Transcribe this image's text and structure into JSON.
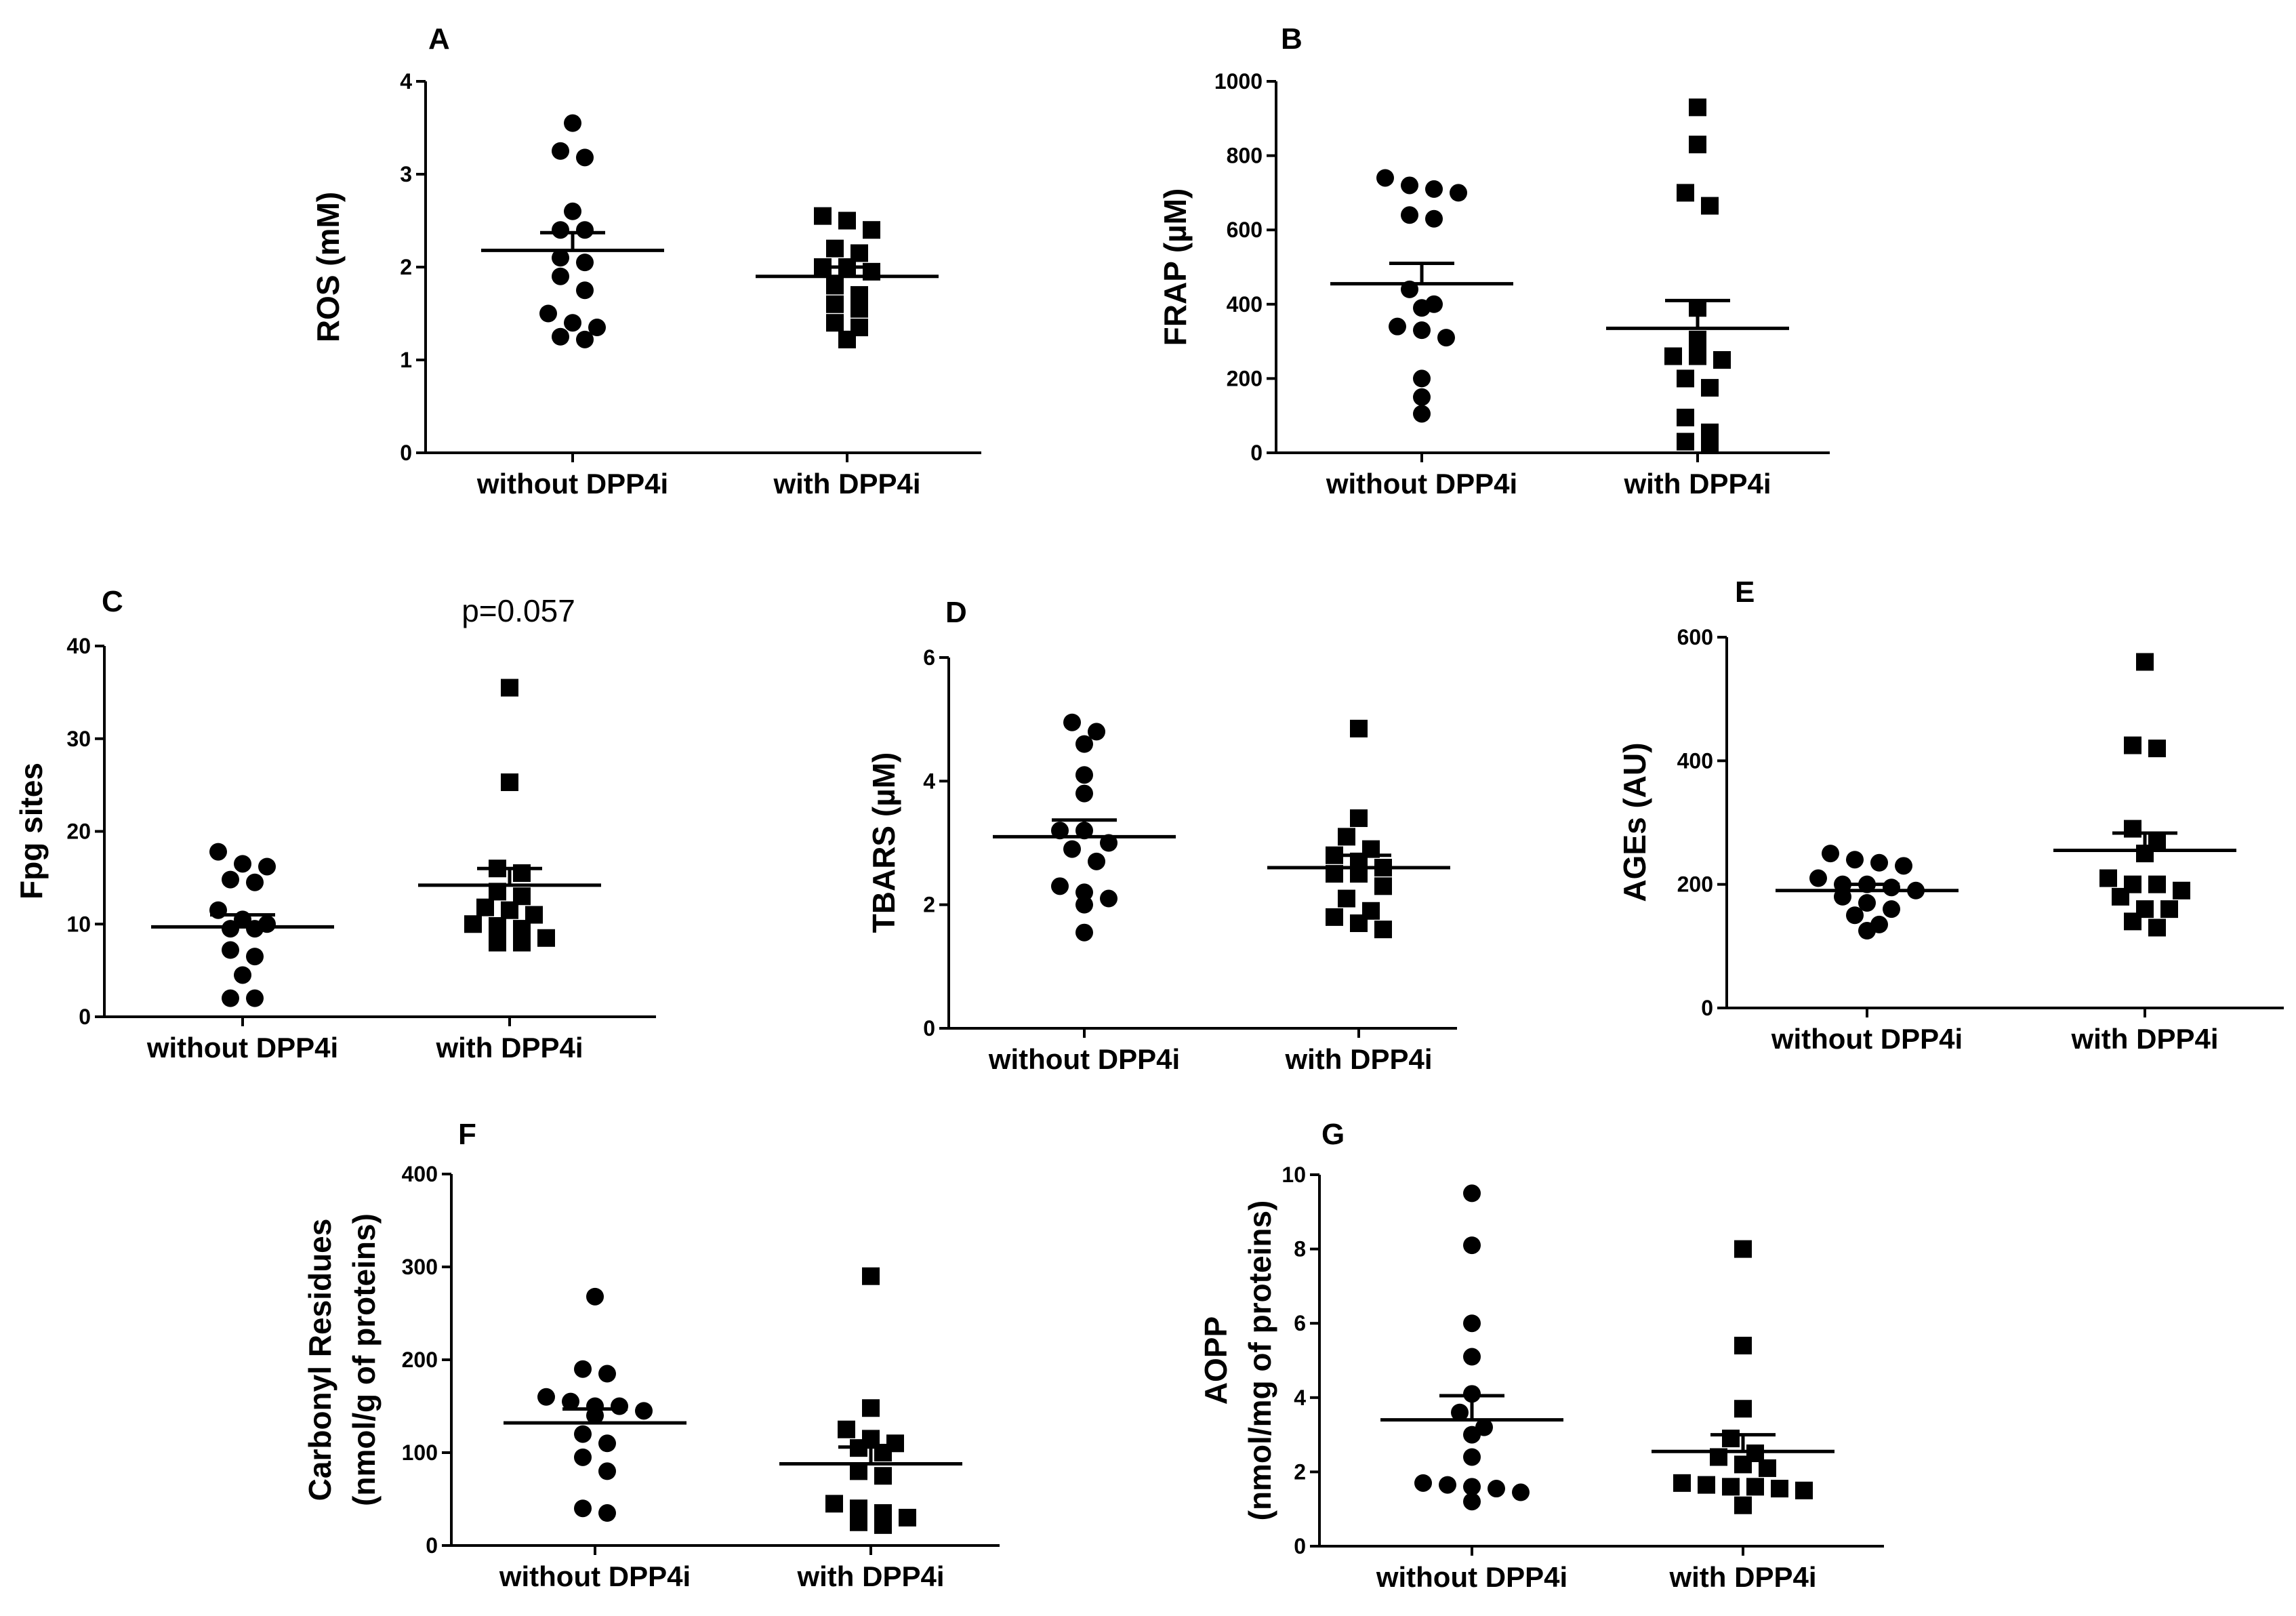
{
  "chart_data": [
    {
      "type": "scatter",
      "panel": "A",
      "ylabel": "ROS (mM)",
      "ylim": [
        0,
        4
      ],
      "yticks": [
        0,
        1,
        2,
        3,
        4
      ],
      "categories": [
        "without DPP4i",
        "with DPP4i"
      ],
      "series": [
        {
          "name": "without DPP4i",
          "marker": "circle",
          "mean": 2.18,
          "sem": 0.19,
          "values": [
            3.55,
            3.25,
            3.18,
            2.6,
            2.4,
            2.4,
            2.1,
            2.05,
            1.9,
            1.75,
            1.5,
            1.4,
            1.35,
            1.25,
            1.22
          ]
        },
        {
          "name": "with DPP4i",
          "marker": "square",
          "mean": 1.9,
          "sem": 0.1,
          "values": [
            2.55,
            2.5,
            2.4,
            2.2,
            2.15,
            2.0,
            2.0,
            1.95,
            1.8,
            1.7,
            1.6,
            1.55,
            1.4,
            1.35,
            1.22
          ]
        }
      ]
    },
    {
      "type": "scatter",
      "panel": "B",
      "ylabel": "FRAP (µM)",
      "ylim": [
        0,
        1000
      ],
      "yticks": [
        0,
        200,
        400,
        600,
        800,
        1000
      ],
      "categories": [
        "without DPP4i",
        "with DPP4i"
      ],
      "series": [
        {
          "name": "without DPP4i",
          "marker": "circle",
          "mean": 455,
          "sem": 55,
          "values": [
            740,
            720,
            710,
            700,
            640,
            630,
            440,
            400,
            390,
            340,
            330,
            310,
            200,
            150,
            105
          ]
        },
        {
          "name": "with DPP4i",
          "marker": "square",
          "mean": 335,
          "sem": 75,
          "values": [
            930,
            830,
            700,
            665,
            390,
            305,
            260,
            260,
            250,
            200,
            175,
            95,
            55,
            30,
            20
          ]
        }
      ]
    },
    {
      "type": "scatter",
      "panel": "C",
      "ylabel": "Fpg sites",
      "ylim": [
        0,
        40
      ],
      "yticks": [
        0,
        10,
        20,
        30,
        40
      ],
      "annotation": "p=0.057",
      "categories": [
        "without DPP4i",
        "with DPP4i"
      ],
      "series": [
        {
          "name": "without DPP4i",
          "marker": "circle",
          "mean": 9.7,
          "sem": 1.3,
          "values": [
            17.8,
            16.5,
            16.2,
            14.8,
            14.5,
            11.5,
            10.5,
            10.0,
            9.5,
            9.5,
            7.2,
            6.5,
            4.5,
            2.0,
            2.0
          ]
        },
        {
          "name": "with DPP4i",
          "marker": "square",
          "mean": 14.2,
          "sem": 1.8,
          "values": [
            35.5,
            25.3,
            16.0,
            15.5,
            13.5,
            13.0,
            11.8,
            11.5,
            11.0,
            10.0,
            9.8,
            9.5,
            8.5,
            8.0,
            8.0
          ]
        }
      ]
    },
    {
      "type": "scatter",
      "panel": "D",
      "ylabel": "TBARS (µM)",
      "ylim": [
        0,
        6
      ],
      "yticks": [
        0,
        2,
        4,
        6
      ],
      "categories": [
        "without DPP4i",
        "with DPP4i"
      ],
      "series": [
        {
          "name": "without DPP4i",
          "marker": "circle",
          "mean": 3.1,
          "sem": 0.27,
          "values": [
            4.95,
            4.8,
            4.6,
            4.1,
            3.8,
            3.2,
            3.2,
            3.0,
            2.9,
            2.7,
            2.3,
            2.2,
            2.1,
            2.0,
            1.55
          ]
        },
        {
          "name": "with DPP4i",
          "marker": "square",
          "mean": 2.6,
          "sem": 0.2,
          "values": [
            4.85,
            3.4,
            3.1,
            2.9,
            2.8,
            2.7,
            2.6,
            2.5,
            2.5,
            2.3,
            2.1,
            1.9,
            1.8,
            1.7,
            1.6
          ]
        }
      ]
    },
    {
      "type": "scatter",
      "panel": "E",
      "ylabel": "AGEs (AU)",
      "ylim": [
        0,
        600
      ],
      "yticks": [
        0,
        200,
        400,
        600
      ],
      "categories": [
        "without DPP4i",
        "with DPP4i"
      ],
      "series": [
        {
          "name": "without DPP4i",
          "marker": "circle",
          "mean": 190,
          "sem": 10,
          "values": [
            250,
            240,
            235,
            230,
            210,
            200,
            200,
            195,
            190,
            180,
            170,
            160,
            150,
            135,
            125
          ]
        },
        {
          "name": "with DPP4i",
          "marker": "square",
          "mean": 255,
          "sem": 28,
          "values": [
            560,
            425,
            420,
            290,
            270,
            250,
            210,
            200,
            200,
            190,
            180,
            160,
            160,
            140,
            130
          ]
        }
      ]
    },
    {
      "type": "scatter",
      "panel": "F",
      "ylabel": "Carbonyl Residues",
      "ylabel2": "(nmol/g of proteins)",
      "ylim": [
        0,
        400
      ],
      "yticks": [
        0,
        100,
        200,
        300,
        400
      ],
      "categories": [
        "without DPP4i",
        "with DPP4i"
      ],
      "series": [
        {
          "name": "without DPP4i",
          "marker": "circle",
          "mean": 132,
          "sem": 15,
          "values": [
            268,
            190,
            185,
            160,
            155,
            150,
            150,
            145,
            140,
            120,
            110,
            95,
            80,
            40,
            35
          ]
        },
        {
          "name": "with DPP4i",
          "marker": "square",
          "mean": 88,
          "sem": 18,
          "values": [
            290,
            148,
            125,
            115,
            110,
            105,
            100,
            80,
            75,
            45,
            40,
            35,
            30,
            25,
            22
          ]
        }
      ]
    },
    {
      "type": "scatter",
      "panel": "G",
      "ylabel": "AOPP",
      "ylabel2": "(nmol/mg of proteins)",
      "ylim": [
        0,
        10
      ],
      "yticks": [
        0,
        2,
        4,
        6,
        8,
        10
      ],
      "categories": [
        "without DPP4i",
        "with DPP4i"
      ],
      "series": [
        {
          "name": "without DPP4i",
          "marker": "circle",
          "mean": 3.4,
          "sem": 0.65,
          "values": [
            9.5,
            8.1,
            6.0,
            5.1,
            4.1,
            3.6,
            3.2,
            3.0,
            2.4,
            1.7,
            1.65,
            1.6,
            1.55,
            1.45,
            1.2
          ]
        },
        {
          "name": "with DPP4i",
          "marker": "square",
          "mean": 2.55,
          "sem": 0.45,
          "values": [
            8.0,
            5.4,
            3.7,
            2.9,
            2.5,
            2.4,
            2.2,
            2.1,
            1.7,
            1.65,
            1.6,
            1.6,
            1.55,
            1.5,
            1.1
          ]
        }
      ]
    }
  ]
}
